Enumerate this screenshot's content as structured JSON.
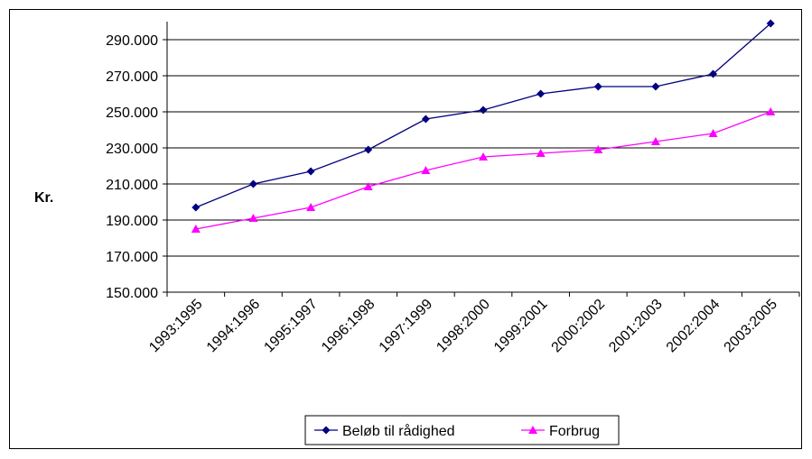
{
  "chart_data": {
    "type": "line",
    "title": "",
    "xlabel": "",
    "ylabel": "Kr.",
    "categories": [
      "1993:1995",
      "1994:1996",
      "1995:1997",
      "1996:1998",
      "1997:1999",
      "1998:2000",
      "1999:2001",
      "2000:2002",
      "2001:2003",
      "2002:2004",
      "2003:2005"
    ],
    "ylim": [
      150000,
      300000
    ],
    "yticks": [
      150000,
      170000,
      190000,
      210000,
      230000,
      250000,
      270000,
      290000
    ],
    "ytick_labels": [
      "150.000",
      "170.000",
      "190.000",
      "210.000",
      "230.000",
      "250.000",
      "270.000",
      "290.000"
    ],
    "grid": true,
    "legend_position": "bottom",
    "series": [
      {
        "name": "Beløb til rådighed",
        "color": "#000080",
        "marker": "diamond",
        "values": [
          197000,
          210000,
          217000,
          229000,
          246000,
          251000,
          260000,
          264000,
          264000,
          271000,
          299000
        ]
      },
      {
        "name": "Forbrug",
        "color": "#FF00FF",
        "marker": "triangle",
        "values": [
          185000,
          191000,
          197000,
          208500,
          217500,
          225000,
          227000,
          229000,
          233500,
          238000,
          250000
        ]
      }
    ]
  }
}
